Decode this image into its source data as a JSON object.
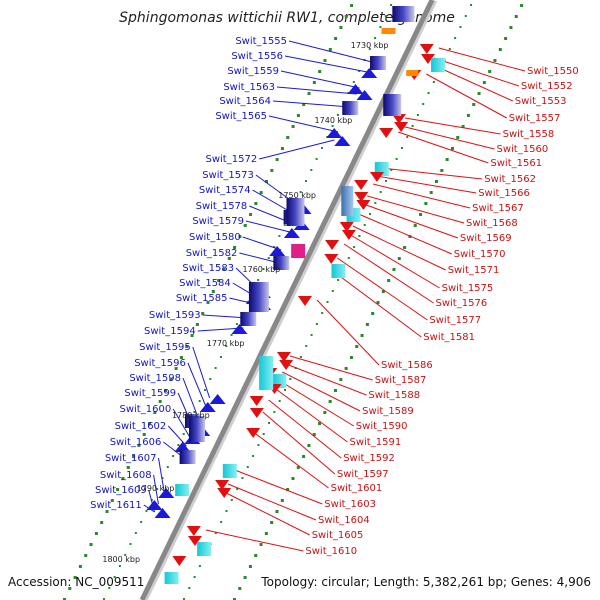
{
  "title": "Sphingomonas wittichii RW1, complete genome",
  "footer": {
    "accession": "Accession: NC_009511",
    "topology": "Topology: circular; Length: 5,382,261 bp; Genes: 4,906"
  },
  "scale_labels": [
    "1730 kbp",
    "1740 kbp",
    "1750 kbp",
    "1760 kbp",
    "1770 kbp",
    "1780 kbp",
    "1790 kbp",
    "1800 kbp"
  ],
  "left_genes": [
    "Swit_1555",
    "Swit_1556",
    "Swit_1559",
    "Swit_1563",
    "Swit_1564",
    "Swit_1565",
    "Swit_1572",
    "Swit_1573",
    "Swit_1574",
    "Swit_1578",
    "Swit_1579",
    "Swit_1580",
    "Swit_1582",
    "Swit_1583",
    "Swit_1584",
    "Swit_1585",
    "Swit_1593",
    "Swit_1594",
    "Swit_1595",
    "Swit_1596",
    "Swit_1598",
    "Swit_1599",
    "Swit_1600",
    "Swit_1602",
    "Swit_1606",
    "Swit_1607",
    "Swit_1608",
    "Swit_1609",
    "Swit_1611"
  ],
  "right_genes": [
    "Swit_1550",
    "Swit_1552",
    "Swit_1553",
    "Swit_1557",
    "Swit_1558",
    "Swit_1560",
    "Swit_1561",
    "Swit_1562",
    "Swit_1566",
    "Swit_1567",
    "Swit_1568",
    "Swit_1569",
    "Swit_1570",
    "Swit_1571",
    "Swit_1575",
    "Swit_1576",
    "Swit_1577",
    "Swit_1581",
    "Swit_1586",
    "Swit_1587",
    "Swit_1588",
    "Swit_1589",
    "Swit_1590",
    "Swit_1591",
    "Swit_1592",
    "Swit_1597",
    "Swit_1601",
    "Swit_1603",
    "Swit_1604",
    "Swit_1605",
    "Swit_1610"
  ],
  "colors": {
    "left_strand": "#1a1ad8",
    "right_strand": "#e01010",
    "backbone": "#888888",
    "gc_dots": "#2a8a2a",
    "accent_cyan": "#22dde0",
    "accent_orange": "#ff8800",
    "accent_magenta": "#e0208a"
  }
}
